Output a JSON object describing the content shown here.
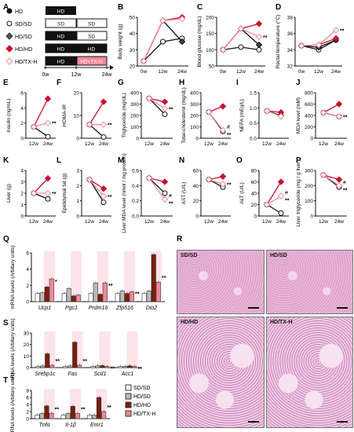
{
  "panel_letters": [
    "A",
    "B",
    "C",
    "D",
    "E",
    "F",
    "G",
    "H",
    "I",
    "J",
    "K",
    "L",
    "M",
    "N",
    "O",
    "P",
    "Q",
    "R",
    "S",
    "T"
  ],
  "legend_a": {
    "groups": [
      "HD",
      "SD/SD",
      "HD/SD",
      "HD/HD",
      "HD/TX-H"
    ],
    "bars": [
      [
        "HD"
      ],
      [
        "SD",
        "SD"
      ],
      [
        "HD",
        "SD"
      ],
      [
        "HD",
        "HD"
      ],
      [
        "HD",
        "HD+TX-H"
      ]
    ],
    "timeline": [
      "0w",
      "12w",
      "24w"
    ]
  },
  "legend_qst": [
    "SD/SD",
    "HD/SD",
    "HD/HD",
    "HD/TX-H"
  ],
  "colors": {
    "hd": "#111111",
    "sdsd": "#ffffff",
    "hdsd": "#555555",
    "hdhd": "#c8102e",
    "txh": "#f08a9a",
    "shade": "#fde3ea",
    "dark_red": "#7a1e0a"
  },
  "chart_data": [
    {
      "panel": "B",
      "type": "line",
      "ylabel": "Body weight (g)",
      "yticks": [
        "20",
        "30",
        "40",
        "50"
      ],
      "ylim": [
        20,
        50
      ],
      "x": [
        "0w",
        "12w",
        "24w"
      ],
      "series": [
        {
          "values": [
            23,
            35,
            37
          ]
        },
        {
          "values": [
            23,
            48,
            35
          ]
        },
        {
          "values": [
            23,
            48,
            50
          ]
        },
        {
          "values": [
            23,
            48,
            49
          ]
        }
      ]
    },
    {
      "panel": "C",
      "type": "line",
      "ylabel": "Blood glucose (mg/dL)",
      "yticks": [
        "50",
        "100",
        "150",
        "200"
      ],
      "ylim": [
        50,
        200
      ],
      "x": [
        "0w",
        "12w",
        "24w"
      ],
      "series": [
        {
          "values": [
            100,
            108,
            100
          ]
        },
        {
          "values": [
            100,
            165,
            115
          ]
        },
        {
          "values": [
            100,
            165,
            180
          ]
        },
        {
          "values": [
            100,
            165,
            140
          ]
        }
      ],
      "annotation": "**"
    },
    {
      "panel": "D",
      "type": "line",
      "ylabel": "Rectal temperature (°C)",
      "yticks": [
        "32",
        "34",
        "36",
        "38"
      ],
      "ylim": [
        32,
        38
      ],
      "x": [
        "0w",
        "12w",
        "24w"
      ],
      "series": [
        {
          "values": [
            34.5,
            34.0,
            35.2
          ]
        },
        {
          "values": [
            34.5,
            34.3,
            35.2
          ]
        },
        {
          "values": [
            34.5,
            34.6,
            35.4
          ]
        },
        {
          "values": [
            34.5,
            34.6,
            36.4
          ]
        }
      ],
      "annotation": "**"
    },
    {
      "panel": "E",
      "type": "line",
      "ylabel": "Insulin (ng/mL)",
      "yticks": [
        "0",
        "2",
        "4",
        "6"
      ],
      "ylim": [
        0,
        6
      ],
      "x": [
        "12w",
        "24w"
      ],
      "series": [
        {
          "values": [
            1.5,
            0.2
          ]
        },
        {
          "values": [
            1.5,
            5.2
          ]
        },
        {
          "values": [
            1.5,
            2.0
          ]
        }
      ],
      "annotation": "**"
    },
    {
      "panel": "F",
      "type": "line",
      "ylabel": "HOMA-IR",
      "yticks": [
        "0",
        "10",
        "20"
      ],
      "ylim": [
        0,
        20
      ],
      "x": [
        "12w",
        "24w"
      ],
      "series": [
        {
          "values": [
            6,
            0.5
          ]
        },
        {
          "values": [
            6,
            16
          ]
        },
        {
          "values": [
            6,
            6
          ]
        }
      ],
      "annotation": "**"
    },
    {
      "panel": "G",
      "type": "line",
      "ylabel": "Triglyceride (mg/dL)",
      "yticks": [
        "0",
        "100",
        "200",
        "300",
        "400"
      ],
      "ylim": [
        0,
        400
      ],
      "x": [
        "12w",
        "24w"
      ],
      "series": [
        {
          "values": [
            350,
            210
          ]
        },
        {
          "values": [
            350,
            320
          ]
        },
        {
          "values": [
            350,
            260
          ]
        }
      ],
      "annotation": "**"
    },
    {
      "panel": "H",
      "type": "line",
      "ylabel": "Total-cholesterol (mg/dL)",
      "yticks": [
        "0",
        "100",
        "200",
        "300",
        "400"
      ],
      "ylim": [
        0,
        400
      ],
      "x": [
        "12w",
        "24w"
      ],
      "series": [
        {
          "values": [
            230,
            60
          ]
        },
        {
          "values": [
            230,
            280
          ]
        },
        {
          "values": [
            230,
            70
          ]
        }
      ],
      "annotations": [
        "#",
        "**"
      ]
    },
    {
      "panel": "I",
      "type": "line",
      "ylabel": "NEFA (mEq/L)",
      "yticks": [
        "0.0",
        "0.5",
        "1.0",
        "1.5"
      ],
      "ylim": [
        0,
        1.5
      ],
      "x": [
        "12w",
        "24w"
      ],
      "series": [
        {
          "values": [
            0.9,
            0.75
          ]
        },
        {
          "values": [
            0.9,
            0.85
          ]
        },
        {
          "values": [
            0.9,
            0.72
          ]
        }
      ]
    },
    {
      "panel": "J",
      "type": "line",
      "ylabel": "MDA level (mM)",
      "yticks": [
        "0",
        "200",
        "400",
        "600",
        "800"
      ],
      "ylim": [
        0,
        800
      ],
      "x": [
        "12w",
        "24w"
      ],
      "series": [
        {
          "values": [
            450,
            380
          ]
        },
        {
          "values": [
            450,
            600
          ]
        },
        {
          "values": [
            450,
            380
          ]
        }
      ],
      "annotation": "**"
    },
    {
      "panel": "K",
      "type": "line",
      "ylabel": "Liver (g)",
      "yticks": [
        "0",
        "1",
        "2",
        "3",
        "4"
      ],
      "ylim": [
        0,
        4
      ],
      "x": [
        "12w",
        "24w"
      ],
      "series": [
        {
          "values": [
            2.0,
            1.5
          ]
        },
        {
          "values": [
            2.0,
            3.3
          ]
        },
        {
          "values": [
            2.0,
            2.0
          ]
        }
      ],
      "annotation": "**"
    },
    {
      "panel": "L",
      "type": "line",
      "ylabel": "Epididymal fat (g)",
      "yticks": [
        "0",
        "1",
        "2",
        "3"
      ],
      "ylim": [
        0,
        3
      ],
      "x": [
        "12w",
        "24w"
      ],
      "series": [
        {
          "values": [
            2.4,
            0.9
          ]
        },
        {
          "values": [
            2.4,
            1.8
          ]
        },
        {
          "values": [
            2.4,
            1.3
          ]
        }
      ],
      "annotation": "**"
    },
    {
      "panel": "M",
      "type": "line",
      "ylabel": "Liver MDA level (nmol / mg protein)",
      "yticks": [
        "0.0",
        "0.2",
        "0.4",
        "0.6"
      ],
      "ylim": [
        0,
        0.6
      ],
      "x": [
        "12w",
        "24w"
      ],
      "series": [
        {
          "values": [
            0.5,
            0.3
          ]
        },
        {
          "values": [
            0.5,
            0.45
          ]
        },
        {
          "values": [
            0.5,
            0.22
          ]
        }
      ],
      "annotations": [
        "#",
        "**"
      ]
    },
    {
      "panel": "N",
      "type": "line",
      "ylabel": "AST (U/L)",
      "yticks": [
        "0",
        "20",
        "40",
        "60"
      ],
      "ylim": [
        0,
        60
      ],
      "x": [
        "12w",
        "24w"
      ],
      "series": [
        {
          "values": [
            48,
            38
          ]
        },
        {
          "values": [
            48,
            52
          ]
        },
        {
          "values": [
            48,
            42
          ]
        }
      ],
      "annotation": "**"
    },
    {
      "panel": "O",
      "type": "line",
      "ylabel": "ALT (U/L)",
      "yticks": [
        "0",
        "20",
        "40",
        "60",
        "80"
      ],
      "ylim": [
        0,
        80
      ],
      "x": [
        "12w",
        "24w"
      ],
      "series": [
        {
          "values": [
            20,
            5
          ]
        },
        {
          "values": [
            20,
            60
          ]
        },
        {
          "values": [
            20,
            35
          ]
        }
      ],
      "annotations": [
        "#",
        "**"
      ]
    },
    {
      "panel": "P",
      "type": "line",
      "ylabel": "Liver triglyceride (mg / g liver)",
      "yticks": [
        "0",
        "100",
        "200",
        "300"
      ],
      "ylim": [
        0,
        300
      ],
      "x": [
        "12w",
        "24w"
      ],
      "series": [
        {
          "values": [
            270,
            190
          ]
        },
        {
          "values": [
            270,
            240
          ]
        },
        {
          "values": [
            270,
            200
          ]
        }
      ],
      "annotations": [
        "#",
        "**"
      ]
    },
    {
      "panel": "Q",
      "type": "bar",
      "ylabel": "mRNA levels (Arbitary units)",
      "yticks": [
        "0",
        "2",
        "4",
        "6"
      ],
      "ylim": [
        0,
        6
      ],
      "categories": [
        "Ucp1",
        "Pgc1",
        "Prdm16",
        "Zfp516",
        "Dio2"
      ],
      "series": [
        {
          "values": [
            1.0,
            1.0,
            1.0,
            1.0,
            1.0
          ]
        },
        {
          "values": [
            1.1,
            1.6,
            2.3,
            1.3,
            1.3
          ]
        },
        {
          "values": [
            1.8,
            0.7,
            0.9,
            1.0,
            5.8
          ]
        },
        {
          "values": [
            2.8,
            0.8,
            2.3,
            1.2,
            2.4
          ]
        }
      ],
      "annotations": [
        "*",
        "",
        "**",
        "**",
        "**"
      ]
    },
    {
      "panel": "S",
      "type": "bar",
      "ylabel": "mRNA levels (Arbitary units)",
      "yticks": [
        "0",
        "10",
        "20",
        "30"
      ],
      "ylim": [
        0,
        30
      ],
      "categories": [
        "Srebp1c",
        "Fas",
        "Scd1",
        "Acc1"
      ],
      "series": [
        {
          "values": [
            1,
            1,
            1,
            1
          ]
        },
        {
          "values": [
            1.5,
            1.5,
            1.5,
            1.0
          ]
        },
        {
          "values": [
            12,
            22,
            1.8,
            1.5
          ]
        },
        {
          "values": [
            2,
            2,
            1,
            1
          ]
        }
      ],
      "annotations": [
        "**",
        "**",
        "**",
        "**"
      ]
    },
    {
      "panel": "T",
      "type": "bar",
      "ylabel": "mRNA levels (Arbitary units)",
      "yticks": [
        "0",
        "2",
        "4",
        "6",
        "8"
      ],
      "ylim": [
        0,
        8
      ],
      "categories": [
        "Tnfα",
        "Il-1β",
        "Emr1"
      ],
      "series": [
        {
          "values": [
            1,
            1,
            1
          ]
        },
        {
          "values": [
            1.5,
            1.5,
            1.0
          ]
        },
        {
          "values": [
            3.6,
            3.5,
            6.0
          ]
        },
        {
          "values": [
            1.5,
            1.5,
            2.0
          ]
        }
      ],
      "annotations": [
        "**",
        "**",
        "**"
      ]
    }
  ],
  "histology": [
    "SD/SD",
    "HD/SD",
    "HD/HD",
    "HD/TX-H"
  ]
}
